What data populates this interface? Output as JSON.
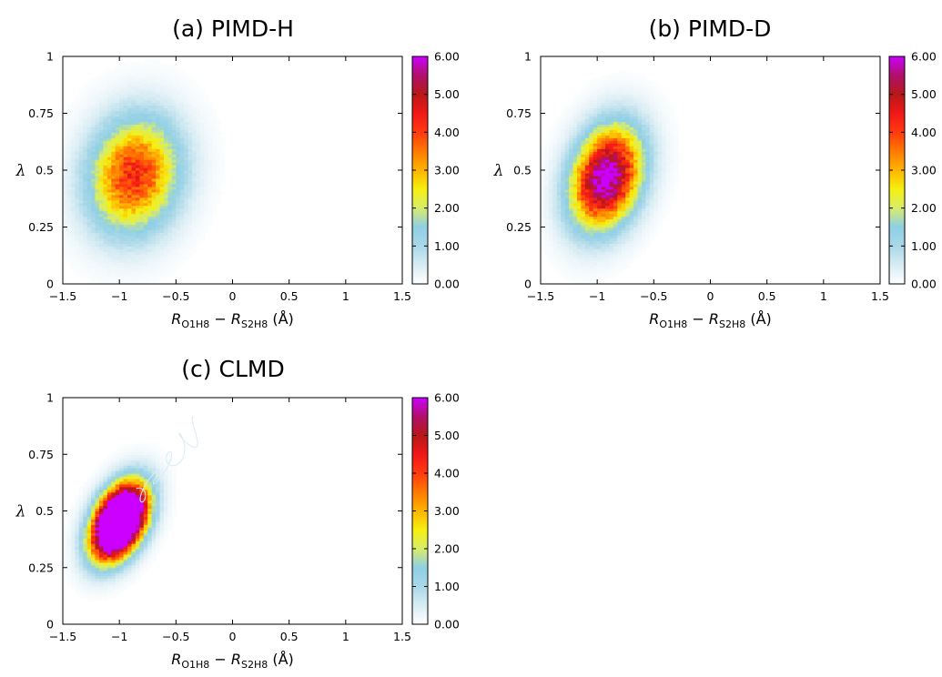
{
  "chart_data": [
    {
      "type": "heatmap",
      "title": "(a) PIMD-H",
      "xlabel": {
        "var1": "R",
        "sub1": "O1H8",
        "minus": " − ",
        "var2": "R",
        "sub2": "S2H8",
        "unit": " (Å)"
      },
      "ylabel": "λ",
      "xlim": [
        -1.5,
        1.5
      ],
      "ylim": [
        0,
        1
      ],
      "xticks": [
        "−1.5",
        "−1",
        "−0.5",
        "0",
        "0.5",
        "1",
        "1.5"
      ],
      "yticks": [
        "0",
        "0.25",
        "0.5",
        "0.75",
        "1"
      ],
      "colorbar": {
        "min": 0,
        "max": 6,
        "ticks": [
          "0.00",
          "1.00",
          "2.00",
          "3.00",
          "4.00",
          "5.00",
          "6.00"
        ]
      },
      "peak": {
        "x": -0.87,
        "y": 0.48,
        "value": 4.3
      },
      "spread": {
        "sx": 0.27,
        "sy": 0.17,
        "rho": 0.12
      },
      "tail": false
    },
    {
      "type": "heatmap",
      "title": "(b) PIMD-D",
      "xlabel": {
        "var1": "R",
        "sub1": "O1H8",
        "minus": " − ",
        "var2": "R",
        "sub2": "S2H8",
        "unit": " (Å)"
      },
      "ylabel": "λ",
      "xlim": [
        -1.5,
        1.5
      ],
      "ylim": [
        0,
        1
      ],
      "xticks": [
        "−1.5",
        "−1",
        "−0.5",
        "0",
        "0.5",
        "1",
        "1.5"
      ],
      "yticks": [
        "0",
        "0.25",
        "0.5",
        "0.75",
        "1"
      ],
      "colorbar": {
        "min": 0,
        "max": 6,
        "ticks": [
          "0.00",
          "1.00",
          "2.00",
          "3.00",
          "4.00",
          "5.00",
          "6.00"
        ]
      },
      "peak": {
        "x": -0.92,
        "y": 0.47,
        "value": 6.4
      },
      "spread": {
        "sx": 0.21,
        "sy": 0.15,
        "rho": 0.25
      },
      "tail": false
    },
    {
      "type": "heatmap",
      "title": "(c) CLMD",
      "xlabel": {
        "var1": "R",
        "sub1": "O1H8",
        "minus": " − ",
        "var2": "R",
        "sub2": "S2H8",
        "unit": " (Å)"
      },
      "ylabel": "λ",
      "xlim": [
        -1.5,
        1.5
      ],
      "ylim": [
        0,
        1
      ],
      "xticks": [
        "−1.5",
        "−1",
        "−0.5",
        "0",
        "0.5",
        "1",
        "1.5"
      ],
      "yticks": [
        "0",
        "0.25",
        "0.5",
        "0.75",
        "1"
      ],
      "colorbar": {
        "min": 0,
        "max": 6,
        "ticks": [
          "0.00",
          "1.00",
          "2.00",
          "3.00",
          "4.00",
          "5.00",
          "6.00"
        ]
      },
      "peak": {
        "x": -1.0,
        "y": 0.455,
        "value": 13.0
      },
      "spread": {
        "sx": 0.155,
        "sy": 0.105,
        "rho": 0.4
      },
      "tail": true
    }
  ],
  "colormap": [
    "#ffffff",
    "#d8ecf4",
    "#a9d8e8",
    "#8fcfe6",
    "#d8ec6a",
    "#f5f010",
    "#ffb400",
    "#ff7a00",
    "#ff3a10",
    "#f01818",
    "#b81818",
    "#b0106a",
    "#cc00ff"
  ]
}
